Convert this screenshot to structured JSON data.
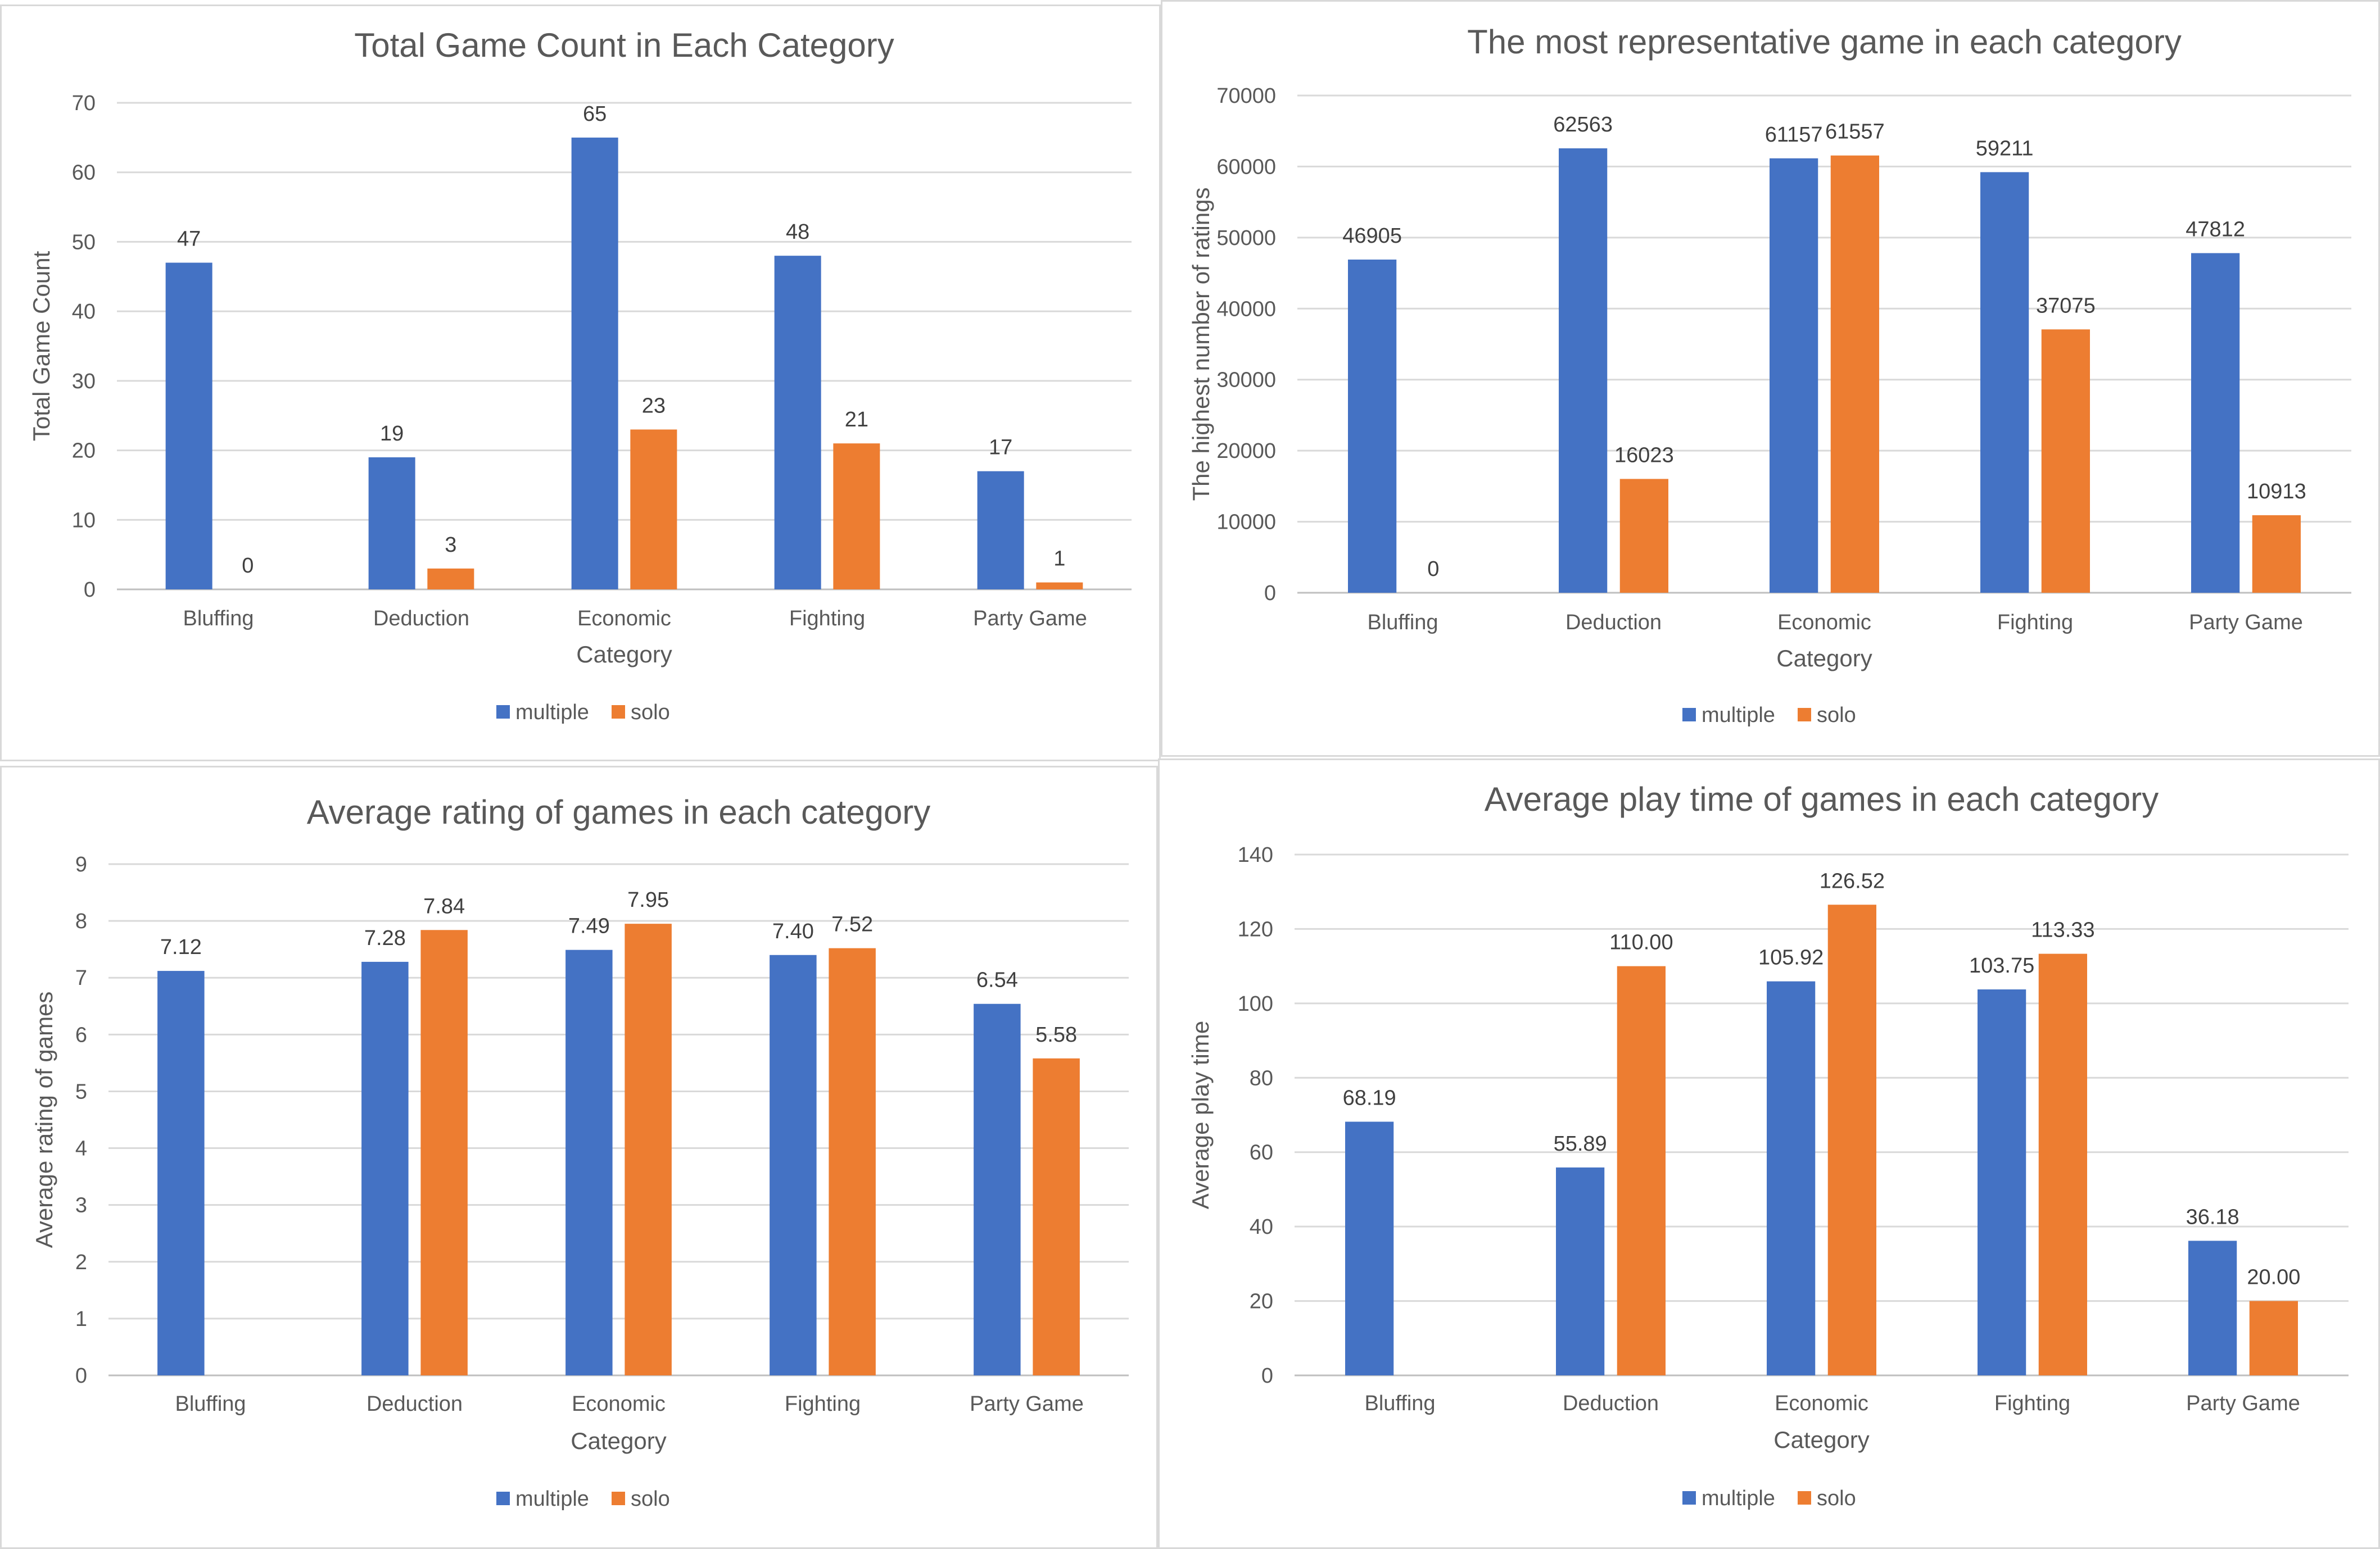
{
  "charts": [
    {
      "title": "Total Game Count in Each Category",
      "xlabel": "Category",
      "ylabel": "Total Game Count",
      "ylim": [
        0,
        70
      ],
      "yticks": [
        "0",
        "10",
        "20",
        "30",
        "40",
        "50",
        "60",
        "70"
      ],
      "categories": [
        "Bluffing",
        "Deduction",
        "Economic",
        "Fighting",
        "Party Game"
      ],
      "series": [
        {
          "name": "multiple",
          "values": [
            47,
            19,
            65,
            48,
            17
          ],
          "labels": [
            "47",
            "19",
            "65",
            "48",
            "17"
          ]
        },
        {
          "name": "solo",
          "values": [
            0,
            3,
            23,
            21,
            1
          ],
          "labels": [
            "0",
            "3",
            "23",
            "21",
            "1"
          ]
        }
      ]
    },
    {
      "title": "The most representative game in each category",
      "xlabel": "Category",
      "ylabel": "The highest number of ratings",
      "ylim": [
        0,
        70000
      ],
      "yticks": [
        "0",
        "10000",
        "20000",
        "30000",
        "40000",
        "50000",
        "60000",
        "70000"
      ],
      "categories": [
        "Bluffing",
        "Deduction",
        "Economic",
        "Fighting",
        "Party Game"
      ],
      "series": [
        {
          "name": "multiple",
          "values": [
            46905,
            62563,
            61157,
            59211,
            47812
          ],
          "labels": [
            "46905",
            "62563",
            "61157",
            "59211",
            "47812"
          ]
        },
        {
          "name": "solo",
          "values": [
            0,
            16023,
            61557,
            37075,
            10913
          ],
          "labels": [
            "0",
            "16023",
            "61557",
            "37075",
            "10913"
          ]
        }
      ]
    },
    {
      "title": "Average rating of games in each category",
      "xlabel": "Category",
      "ylabel": "Average rating of games",
      "ylim": [
        0,
        9
      ],
      "yticks": [
        "0",
        "1",
        "2",
        "3",
        "4",
        "5",
        "6",
        "7",
        "8",
        "9"
      ],
      "categories": [
        "Bluffing",
        "Deduction",
        "Economic",
        "Fighting",
        "Party Game"
      ],
      "series": [
        {
          "name": "multiple",
          "values": [
            7.12,
            7.28,
            7.49,
            7.4,
            6.54
          ],
          "labels": [
            "7.12",
            "7.28",
            "7.49",
            "7.40",
            "6.54"
          ]
        },
        {
          "name": "solo",
          "values": [
            0,
            7.84,
            7.95,
            7.52,
            5.58
          ],
          "labels": [
            "",
            "7.84",
            "7.95",
            "7.52",
            "5.58"
          ]
        }
      ]
    },
    {
      "title": "Average play time of games in each category",
      "xlabel": "Category",
      "ylabel": "Average play time",
      "ylim": [
        0,
        140
      ],
      "yticks": [
        "0",
        "20",
        "40",
        "60",
        "80",
        "100",
        "120",
        "140"
      ],
      "categories": [
        "Bluffing",
        "Deduction",
        "Economic",
        "Fighting",
        "Party Game"
      ],
      "series": [
        {
          "name": "multiple",
          "values": [
            68.19,
            55.89,
            105.92,
            103.75,
            36.18
          ],
          "labels": [
            "68.19",
            "55.89",
            "105.92",
            "103.75",
            "36.18"
          ]
        },
        {
          "name": "solo",
          "values": [
            0,
            110.0,
            126.52,
            113.33,
            20.0
          ],
          "labels": [
            "",
            "110.00",
            "126.52",
            "113.33",
            "20.00"
          ]
        }
      ]
    }
  ],
  "chart_data": [
    {
      "type": "bar",
      "title": "Total Game Count in Each Category",
      "xlabel": "Category",
      "ylabel": "Total Game Count",
      "ylim": [
        0,
        70
      ],
      "grid": true,
      "legend": "bottom",
      "categories": [
        "Bluffing",
        "Deduction",
        "Economic",
        "Fighting",
        "Party Game"
      ],
      "series": [
        {
          "name": "multiple",
          "values": [
            47,
            19,
            65,
            48,
            17
          ]
        },
        {
          "name": "solo",
          "values": [
            0,
            3,
            23,
            21,
            1
          ]
        }
      ]
    },
    {
      "type": "bar",
      "title": "The most representative game in each category",
      "xlabel": "Category",
      "ylabel": "The highest number of ratings",
      "ylim": [
        0,
        70000
      ],
      "grid": true,
      "legend": "bottom",
      "categories": [
        "Bluffing",
        "Deduction",
        "Economic",
        "Fighting",
        "Party Game"
      ],
      "series": [
        {
          "name": "multiple",
          "values": [
            46905,
            62563,
            61157,
            59211,
            47812
          ]
        },
        {
          "name": "solo",
          "values": [
            0,
            16023,
            61557,
            37075,
            10913
          ]
        }
      ]
    },
    {
      "type": "bar",
      "title": "Average rating of games in each category",
      "xlabel": "Category",
      "ylabel": "Average rating of games",
      "ylim": [
        0,
        9
      ],
      "grid": true,
      "legend": "bottom",
      "categories": [
        "Bluffing",
        "Deduction",
        "Economic",
        "Fighting",
        "Party Game"
      ],
      "series": [
        {
          "name": "multiple",
          "values": [
            7.12,
            7.28,
            7.49,
            7.4,
            6.54
          ]
        },
        {
          "name": "solo",
          "values": [
            0,
            7.84,
            7.95,
            7.52,
            5.58
          ]
        }
      ]
    },
    {
      "type": "bar",
      "title": "Average play time of games in each category",
      "xlabel": "Category",
      "ylabel": "Average play time",
      "ylim": [
        0,
        140
      ],
      "grid": true,
      "legend": "bottom",
      "categories": [
        "Bluffing",
        "Deduction",
        "Economic",
        "Fighting",
        "Party Game"
      ],
      "series": [
        {
          "name": "multiple",
          "values": [
            68.19,
            55.89,
            105.92,
            103.75,
            36.18
          ]
        },
        {
          "name": "solo",
          "values": [
            0,
            110.0,
            126.52,
            113.33,
            20.0
          ]
        }
      ]
    }
  ],
  "colors": {
    "multiple": "#4472c4",
    "solo": "#ed7d31"
  }
}
